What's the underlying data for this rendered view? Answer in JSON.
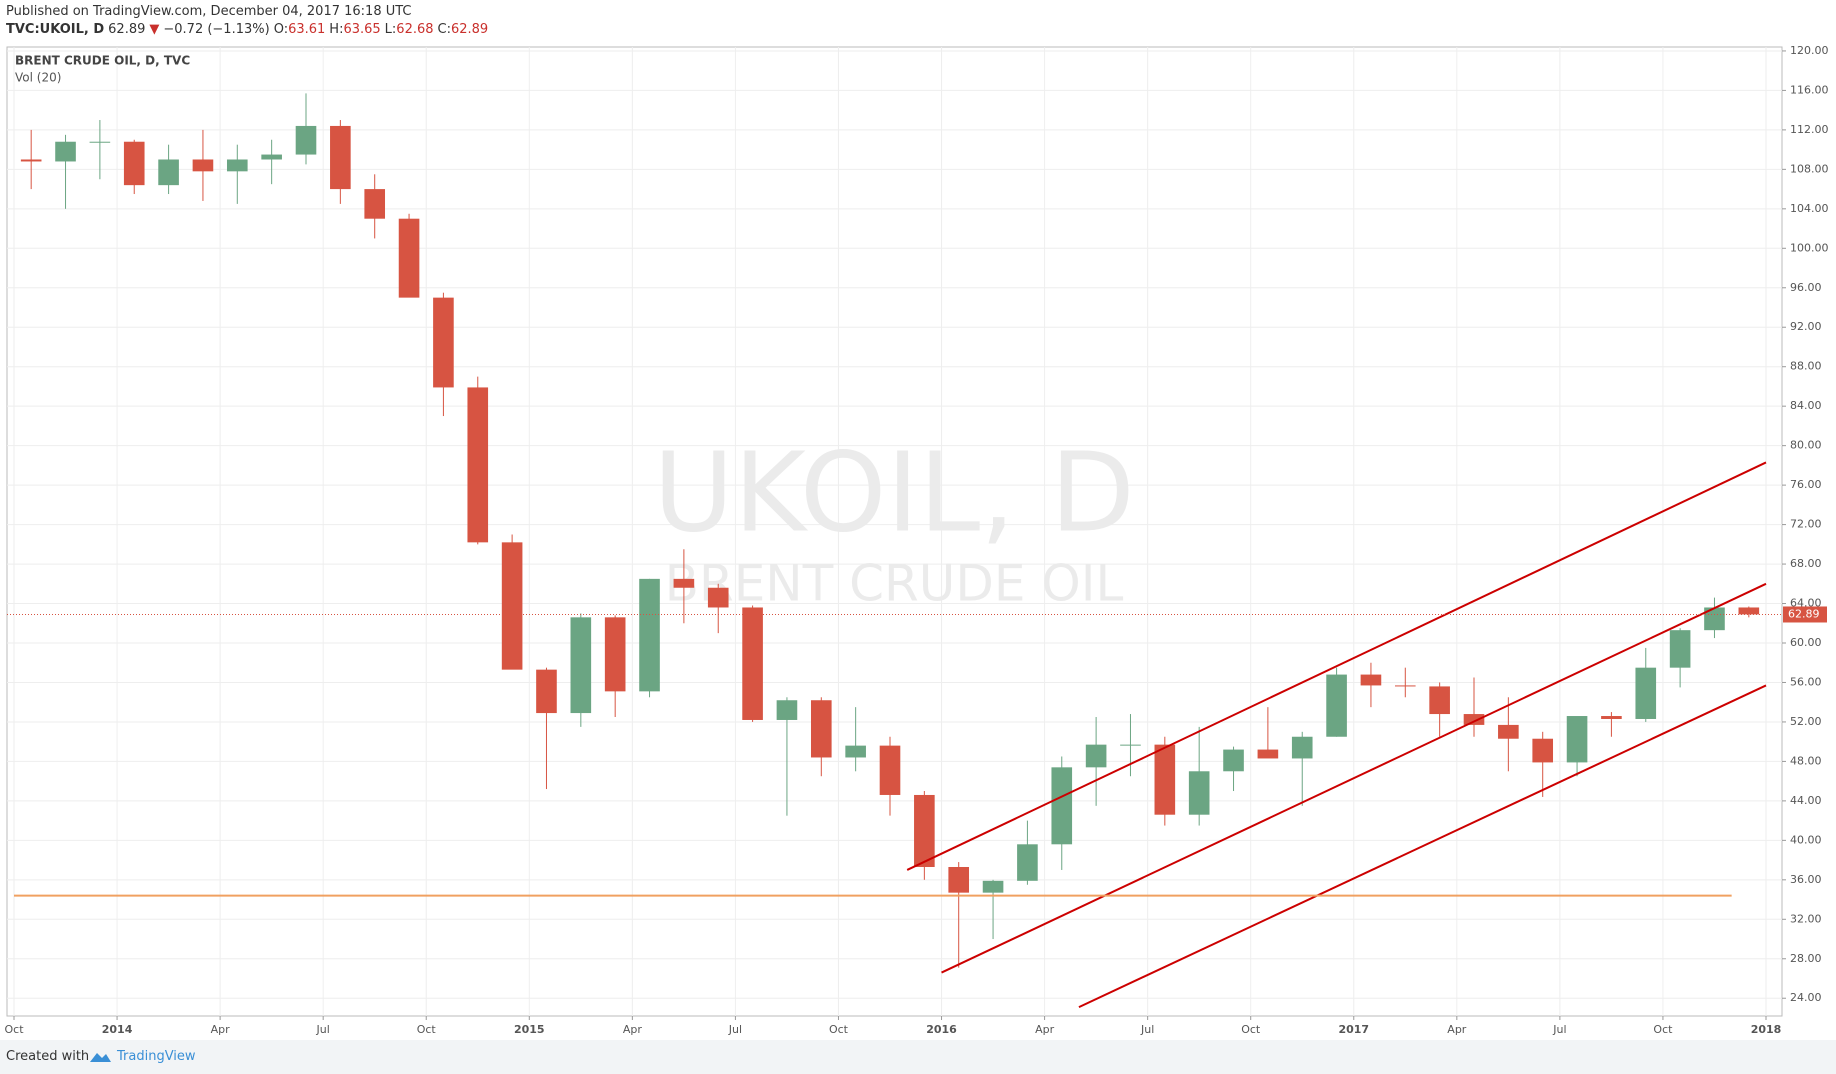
{
  "header": {
    "published": "Published on TradingView.com, December 04, 2017 16:18 UTC",
    "symbol": "TVC:UKOIL, D",
    "price": "62.89",
    "arrow": "▼",
    "change": "−0.72 (−1.13%)",
    "o_label": "O:",
    "o": "63.61",
    "h_label": "H:",
    "h": "63.65",
    "l_label": "L:",
    "l": "62.68",
    "c_label": "C:",
    "c": "62.89"
  },
  "footer": {
    "created": "Created with",
    "brand": "TradingView"
  },
  "chart_data": {
    "type": "candlestick",
    "legend_title": "BRENT CRUDE OIL, D, TVC",
    "legend_sub": "Vol (20)",
    "watermark": "UKOIL, D",
    "watermark_sub": "BRENT CRUDE OIL",
    "up_color": "#6ba583",
    "down_color": "#d75442",
    "grid": true,
    "x": [
      "2013-10",
      "2013-11",
      "2013-12",
      "2014-01",
      "2014-02",
      "2014-03",
      "2014-04",
      "2014-05",
      "2014-06",
      "2014-07",
      "2014-08",
      "2014-09",
      "2014-10",
      "2014-11",
      "2014-12",
      "2015-01",
      "2015-02",
      "2015-03",
      "2015-04",
      "2015-05",
      "2015-06",
      "2015-07",
      "2015-08",
      "2015-09",
      "2015-10",
      "2015-11",
      "2015-12",
      "2016-01",
      "2016-02",
      "2016-03",
      "2016-04",
      "2016-05",
      "2016-06",
      "2016-07",
      "2016-08",
      "2016-09",
      "2016-10",
      "2016-11",
      "2016-12",
      "2017-01",
      "2017-02",
      "2017-03",
      "2017-04",
      "2017-05",
      "2017-06",
      "2017-07",
      "2017-08",
      "2017-09",
      "2017-10",
      "2017-11",
      "2017-12"
    ],
    "open": [
      109,
      108.8,
      110.8,
      110.8,
      106.4,
      109,
      107.8,
      109,
      109.5,
      112.4,
      106,
      103,
      95,
      85.9,
      70.2,
      57.3,
      52.9,
      62.6,
      55.1,
      66.5,
      65.6,
      63.6,
      52.2,
      54.2,
      48.4,
      49.6,
      44.6,
      37.3,
      34.7,
      35.9,
      39.6,
      47.4,
      49.7,
      49.7,
      42.6,
      47,
      49.2,
      48.3,
      50.5,
      56.8,
      55.7,
      55.6,
      52.8,
      51.7,
      50.3,
      47.9,
      52.6,
      52.3,
      57.5,
      61.3,
      63.6
    ],
    "high": [
      112,
      111.5,
      113,
      111,
      110.5,
      112,
      110.5,
      111,
      115.7,
      113,
      107.5,
      103.5,
      95.5,
      87,
      71,
      57.5,
      63,
      62.8,
      66.5,
      69.5,
      66,
      63.8,
      54.5,
      54.5,
      53.5,
      50.5,
      45,
      37.8,
      36,
      42,
      48.5,
      52.5,
      52.8,
      50.5,
      51.5,
      49.5,
      53.5,
      51,
      57.5,
      58,
      57.5,
      56,
      56.5,
      54.5,
      51,
      52.5,
      53,
      59.5,
      61.5,
      64.6,
      63.7
    ],
    "low": [
      106,
      104,
      107,
      105.5,
      105.5,
      104.8,
      104.5,
      106.5,
      108.5,
      104.5,
      101,
      95.5,
      83,
      70,
      57.5,
      45.2,
      51.5,
      52.5,
      54.5,
      62,
      61,
      52,
      42.5,
      46.5,
      47,
      42.5,
      36,
      27.1,
      30,
      35.5,
      37,
      43.5,
      46.5,
      41.5,
      41.5,
      45,
      48.5,
      43.5,
      50.5,
      53.5,
      54.5,
      50.5,
      50.5,
      47,
      44.4,
      46.5,
      50.5,
      52,
      55.5,
      60.5,
      62.6
    ],
    "close": [
      108.8,
      110.8,
      110.8,
      106.4,
      109,
      107.8,
      109,
      109.5,
      112.4,
      106,
      103,
      95,
      85.9,
      70.2,
      57.3,
      52.9,
      62.6,
      55.1,
      66.5,
      65.6,
      63.6,
      52.2,
      54.2,
      48.4,
      49.6,
      44.6,
      37.3,
      34.7,
      35.9,
      39.6,
      47.4,
      49.7,
      49.7,
      42.6,
      47,
      49.2,
      48.3,
      50.5,
      56.8,
      55.7,
      55.6,
      52.8,
      51.7,
      50.3,
      47.9,
      52.6,
      52.3,
      57.5,
      61.3,
      63.6,
      62.9
    ],
    "last_price": 62.89,
    "trend_lines": [
      {
        "color": "#cc0000",
        "x": [
          "2015-12",
          "2018-01"
        ],
        "y": [
          37,
          78.3
        ]
      },
      {
        "color": "#cc0000",
        "x": [
          "2016-01",
          "2018-01"
        ],
        "y": [
          26.6,
          66
        ]
      },
      {
        "color": "#cc0000",
        "x": [
          "2016-05",
          "2018-01"
        ],
        "y": [
          23.1,
          55.7
        ]
      },
      {
        "color": "#f0a060",
        "x": [
          "2013-10",
          "2017-12"
        ],
        "y": [
          34.4,
          34.4
        ]
      }
    ],
    "xlim": [
      "2013-10",
      "2018-01"
    ],
    "xticks": [
      {
        "value": "2013-10",
        "label": "Oct"
      },
      {
        "value": "2014-01",
        "label": "2014"
      },
      {
        "value": "2014-04",
        "label": "Apr"
      },
      {
        "value": "2014-07",
        "label": "Jul"
      },
      {
        "value": "2014-10",
        "label": "Oct"
      },
      {
        "value": "2015-01",
        "label": "2015"
      },
      {
        "value": "2015-04",
        "label": "Apr"
      },
      {
        "value": "2015-07",
        "label": "Jul"
      },
      {
        "value": "2015-10",
        "label": "Oct"
      },
      {
        "value": "2016-01",
        "label": "2016"
      },
      {
        "value": "2016-04",
        "label": "Apr"
      },
      {
        "value": "2016-07",
        "label": "Jul"
      },
      {
        "value": "2016-10",
        "label": "Oct"
      },
      {
        "value": "2017-01",
        "label": "2017"
      },
      {
        "value": "2017-04",
        "label": "Apr"
      },
      {
        "value": "2017-07",
        "label": "Jul"
      },
      {
        "value": "2017-10",
        "label": "Oct"
      },
      {
        "value": "2018-01",
        "label": "2018"
      }
    ],
    "ylim": [
      22.2,
      120.4
    ],
    "yticks": [
      {
        "value": 24,
        "label": "24.00"
      },
      {
        "value": 28,
        "label": "28.00"
      },
      {
        "value": 32,
        "label": "32.00"
      },
      {
        "value": 36,
        "label": "36.00"
      },
      {
        "value": 40,
        "label": "40.00"
      },
      {
        "value": 44,
        "label": "44.00"
      },
      {
        "value": 48,
        "label": "48.00"
      },
      {
        "value": 52,
        "label": "52.00"
      },
      {
        "value": 56,
        "label": "56.00"
      },
      {
        "value": 60,
        "label": "60.00"
      },
      {
        "value": 64,
        "label": "64.00"
      },
      {
        "value": 68,
        "label": "68.00"
      },
      {
        "value": 72,
        "label": "72.00"
      },
      {
        "value": 76,
        "label": "76.00"
      },
      {
        "value": 80,
        "label": "80.00"
      },
      {
        "value": 84,
        "label": "84.00"
      },
      {
        "value": 88,
        "label": "88.00"
      },
      {
        "value": 92,
        "label": "92.00"
      },
      {
        "value": 96,
        "label": "96.00"
      },
      {
        "value": 100,
        "label": "100.00"
      },
      {
        "value": 104,
        "label": "104.00"
      },
      {
        "value": 108,
        "label": "108.00"
      },
      {
        "value": 112,
        "label": "112.00"
      },
      {
        "value": 116,
        "label": "116.00"
      },
      {
        "value": 120,
        "label": "120.00"
      }
    ]
  }
}
